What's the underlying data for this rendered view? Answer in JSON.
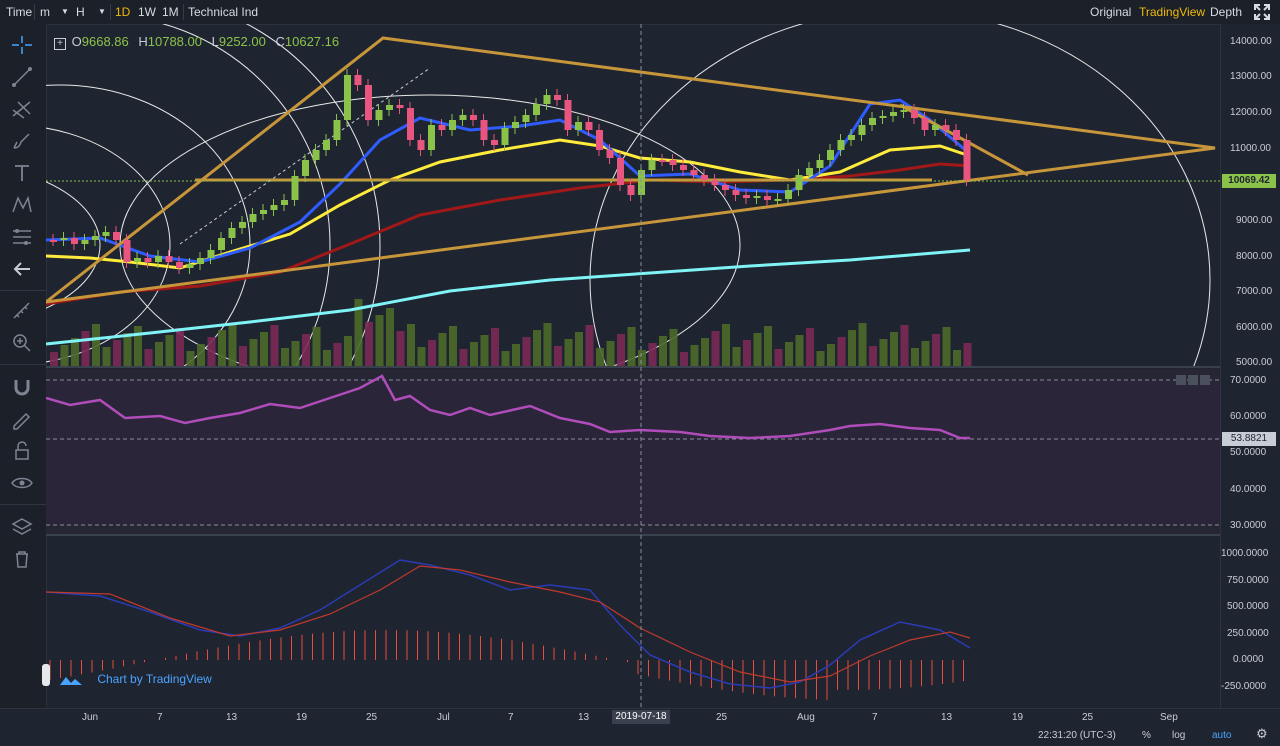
{
  "topbar": {
    "time_label": "Time",
    "minute_label": "m",
    "hour_label": "H",
    "d1_label": "1D",
    "w1_label": "1W",
    "m1_label": "1M",
    "indicators_label": "Technical Ind",
    "original_label": "Original",
    "tradingview_label": "TradingView",
    "depth_label": "Depth",
    "active_color": "#f0b90b"
  },
  "legend": {
    "o_key": "O",
    "o_val": "9668.86",
    "h_key": "H",
    "h_val": "10788.00",
    "l_key": "L",
    "l_val": "9252.00",
    "c_key": "C",
    "c_val": "10627.16"
  },
  "price_axis": [
    "14000.00",
    "13000.00",
    "12000.00",
    "11000.00",
    "10000.00",
    "9000.00",
    "8000.00",
    "7000.00",
    "6000.00",
    "5000.00"
  ],
  "current_price": "10069.42",
  "rsi_axis": [
    "70.0000",
    "60.0000",
    "50.0000",
    "40.0000",
    "30.0000"
  ],
  "rsi_value": "53.8821",
  "macd_axis": [
    "1000.0000",
    "750.0000",
    "500.0000",
    "250.0000",
    "0.0000",
    "-250.0000"
  ],
  "time_axis": [
    "Jun",
    "7",
    "13",
    "19",
    "25",
    "Jul",
    "7",
    "13",
    "2019-07-18",
    "25",
    "Aug",
    "7",
    "13",
    "19",
    "25",
    "Sep"
  ],
  "branding": "Chart by TradingView",
  "footer": {
    "clock": "22:31:20 (UTC-3)",
    "percent": "%",
    "log": "log",
    "auto": "auto"
  },
  "colors": {
    "up": "#8bc34a",
    "down": "#e8557e",
    "ema_blue": "#2f5cff",
    "ema_yellow": "#ffeb3b",
    "ema_red": "#b71c1c",
    "ema_cyan": "#7ff3f5",
    "triangle": "#c8963a",
    "rsi": "#b04dbb"
  },
  "icons": [
    "crosshair-icon",
    "trendline-icon",
    "fork-icon",
    "brush-icon",
    "text-icon",
    "pattern-icon",
    "fib-icon",
    "back-arrow-icon",
    "ruler-icon",
    "zoom-icon",
    "magnet-icon",
    "lock-draw-icon",
    "lock-icon",
    "eye-icon",
    "layers-icon",
    "trash-icon"
  ]
}
